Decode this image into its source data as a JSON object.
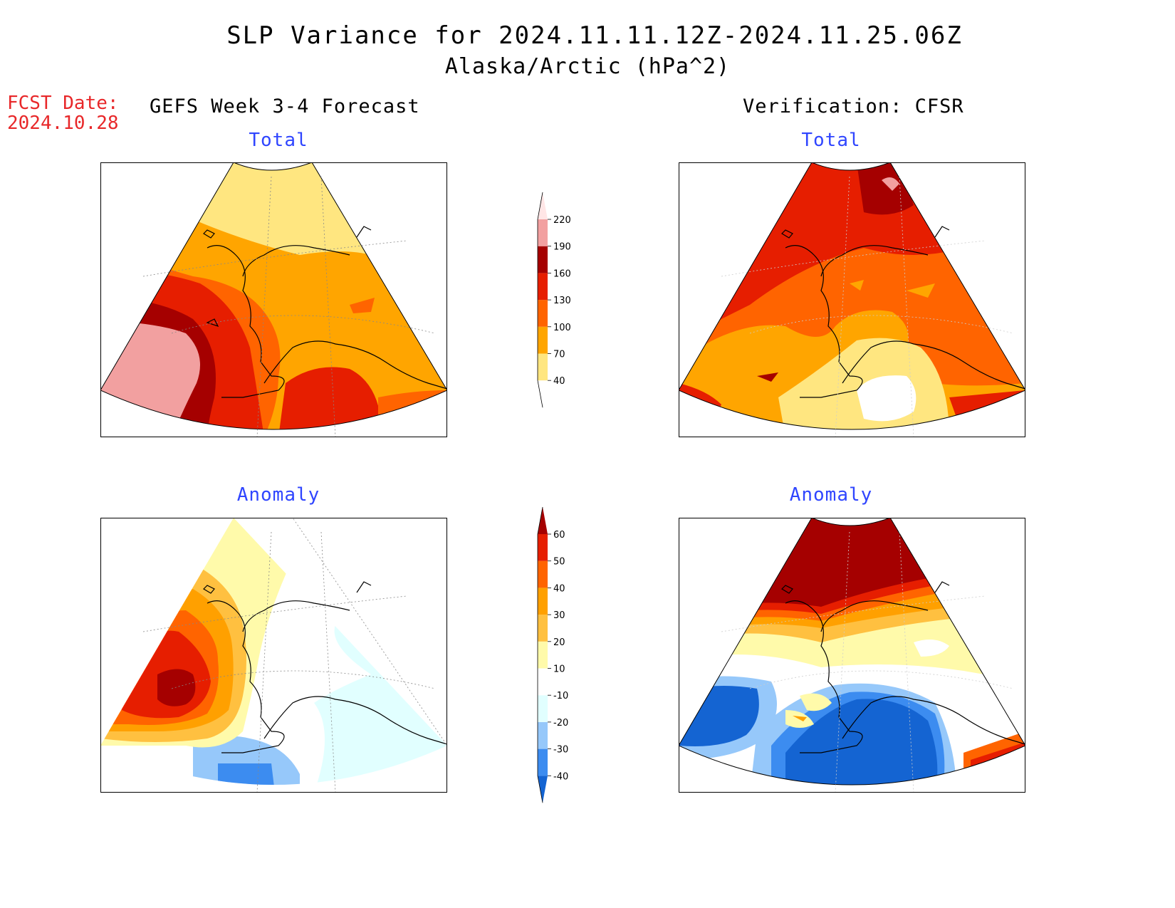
{
  "title": {
    "line1": "SLP Variance for 2024.11.11.12Z-2024.11.25.06Z",
    "line2": "Alaska/Arctic (hPa^2)"
  },
  "forecast_date": {
    "label": "FCST Date:",
    "value": "2024.10.28"
  },
  "columns": {
    "left": "GEFS Week 3-4 Forecast",
    "right": "Verification: CFSR"
  },
  "panels": {
    "top_left": "Total",
    "top_right": "Total",
    "bottom_left": "Anomaly",
    "bottom_right": "Anomaly"
  },
  "colorbars": {
    "total": {
      "ticks": [
        "40",
        "70",
        "100",
        "130",
        "160",
        "190",
        "220"
      ],
      "colors": [
        "#ffffff",
        "#ffe680",
        "#ffa500",
        "#ff6400",
        "#e61e00",
        "#a50000",
        "#f2a0a0",
        "#ffe6e6"
      ]
    },
    "anomaly": {
      "ticks": [
        "-40",
        "-30",
        "-20",
        "-10",
        "10",
        "20",
        "30",
        "40",
        "50",
        "60"
      ],
      "colors": [
        "#1464d2",
        "#3c8cf0",
        "#96c8fa",
        "#e1ffff",
        "#ffffff",
        "#fffaaa",
        "#ffc040",
        "#ffa000",
        "#ff6400",
        "#e61e00",
        "#a50000"
      ]
    }
  }
}
